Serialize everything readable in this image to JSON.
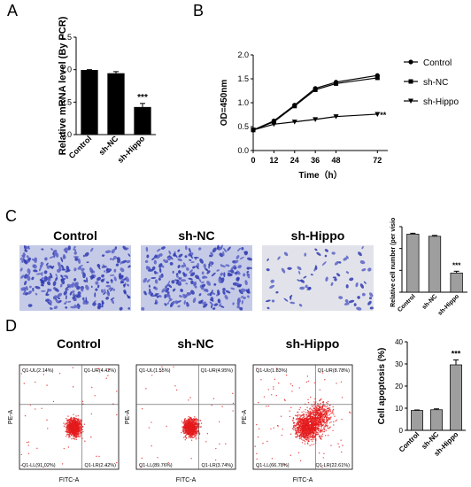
{
  "panels": {
    "a": {
      "letter": "A"
    },
    "b": {
      "letter": "B"
    },
    "c": {
      "letter": "C"
    },
    "d": {
      "letter": "D"
    }
  },
  "conditions": [
    "Control",
    "sh-NC",
    "sh-Hippo"
  ],
  "chart_data": [
    {
      "id": "A",
      "type": "bar",
      "categories": [
        "Control",
        "sh-NC",
        "sh-Hippo"
      ],
      "values": [
        0.99,
        0.94,
        0.42
      ],
      "errors": [
        0.01,
        0.03,
        0.06
      ],
      "ylabel": "Relative mRNA level (By PCR)",
      "ylim": [
        0,
        1.5
      ],
      "yticks": [
        "0.0",
        "0.5",
        "1.0",
        "1.5"
      ],
      "annotations": [
        {
          "category": "sh-Hippo",
          "text": "***"
        }
      ],
      "bar_color": "#000000"
    },
    {
      "id": "B",
      "type": "line",
      "x": [
        0,
        12,
        24,
        36,
        48,
        72
      ],
      "xticks": [
        "0",
        "12",
        "24",
        "36",
        "48",
        "72"
      ],
      "series": [
        {
          "name": "Control",
          "marker": "circle",
          "values": [
            0.43,
            0.62,
            0.95,
            1.3,
            1.43,
            1.57
          ]
        },
        {
          "name": "sh-NC",
          "marker": "square",
          "values": [
            0.43,
            0.6,
            0.93,
            1.27,
            1.4,
            1.52
          ]
        },
        {
          "name": "sh-Hippo",
          "marker": "triangle-down",
          "values": [
            0.43,
            0.55,
            0.6,
            0.65,
            0.71,
            0.76
          ]
        }
      ],
      "xlabel": "Time（h）",
      "ylabel": "OD=450nm",
      "ylim": [
        0,
        2.0
      ],
      "yticks": [
        "0.0",
        "0.5",
        "1.0",
        "1.5",
        "2.0"
      ],
      "annotations": [
        {
          "series": "sh-Hippo",
          "text": "**"
        }
      ],
      "legend": "right"
    },
    {
      "id": "C",
      "type": "bar",
      "categories": [
        "Control",
        "sh-NC",
        "sh-Hippo"
      ],
      "values": [
        133,
        128,
        44
      ],
      "errors": [
        2,
        2,
        4
      ],
      "ylabel": "Relative cell number (per vision)",
      "ylim": [
        0,
        150
      ],
      "annotations": [
        {
          "category": "sh-Hippo",
          "text": "***"
        }
      ],
      "bar_color": "#9e9e9e"
    },
    {
      "id": "D",
      "type": "bar",
      "categories": [
        "Control",
        "sh-NC",
        "sh-Hippo"
      ],
      "values": [
        9.0,
        9.3,
        29.6
      ],
      "errors": [
        0.2,
        0.4,
        2.2
      ],
      "ylabel": "Cell apoptosis (%)",
      "ylim": [
        0,
        40
      ],
      "yticks": [
        "0",
        "10",
        "20",
        "30",
        "40"
      ],
      "annotations": [
        {
          "category": "sh-Hippo",
          "text": "***"
        }
      ],
      "bar_color": "#9e9e9e"
    },
    {
      "id": "D-flow",
      "type": "scatter",
      "xlabel": "FITC-A",
      "ylabel": "PE-A",
      "plots": [
        {
          "condition": "Control",
          "UL": "Q1-UL(2.14%)",
          "UR": "Q1-UR(4.42%)",
          "LL": "Q1-LL(91.02%)",
          "LR": "Q1-LR(2.42%)"
        },
        {
          "condition": "sh-NC",
          "UL": "Q1-UL(1.55%)",
          "UR": "Q1-UR(4.95%)",
          "LL": "Q1-LL(89.76%)",
          "LR": "Q1-LR(3.74%)"
        },
        {
          "condition": "sh-Hippo",
          "UL": "Q1-UL(1.83%)",
          "UR": "Q1-UR(8.78%)",
          "LL": "Q1-LL(66.78%)",
          "LR": "Q1-LR(22.61%)"
        }
      ]
    }
  ]
}
